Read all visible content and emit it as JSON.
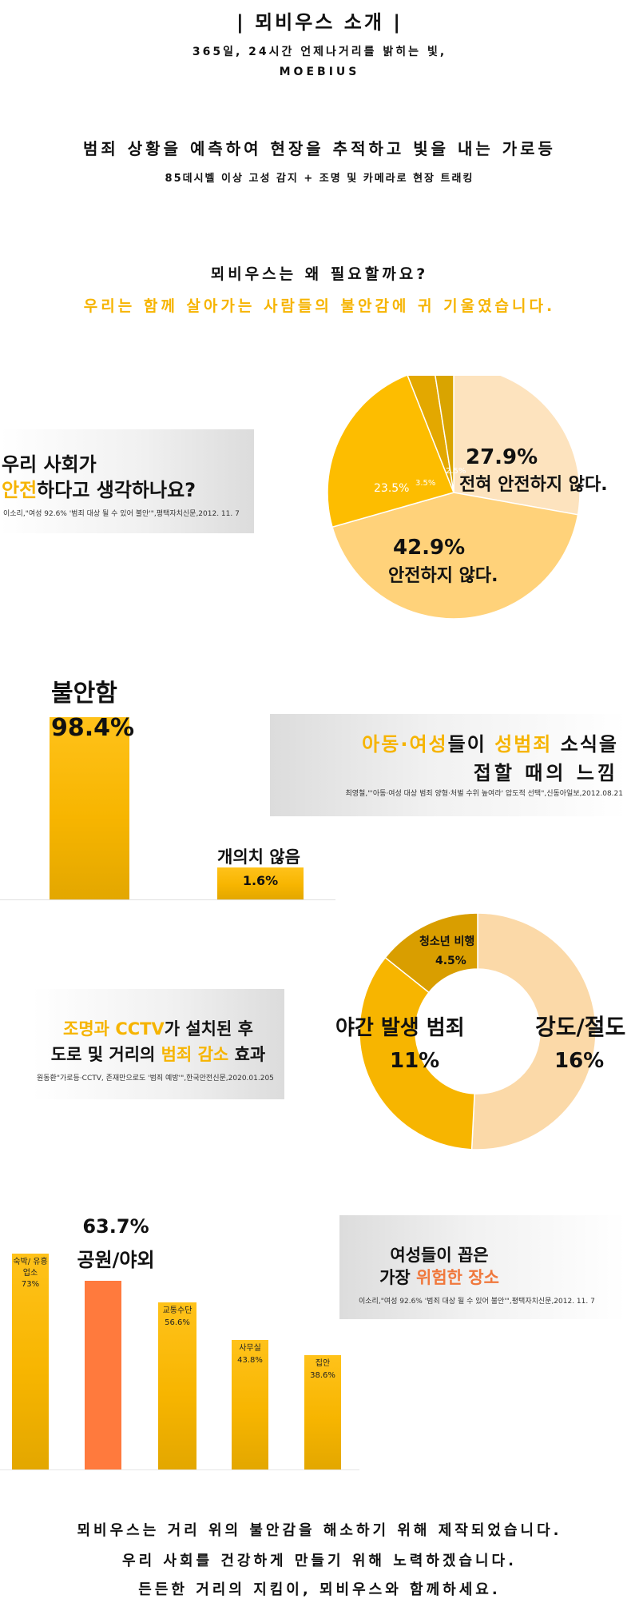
{
  "header": {
    "title": "| 뫼비우스 소개 |",
    "line1": "365일, 24시간 언제나거리를 밝히는 빛,",
    "line2": "MOEBIUS"
  },
  "intro": {
    "headline": "범죄 상황을 예측하여 현장을 추적하고 빛을 내는 가로등",
    "sub": "85데시벨 이상 고성 감지 + 조명 및 카메라로 현장 트래킹"
  },
  "why": {
    "question": "뫼비우스는 왜 필요할까요?",
    "answer": "우리는 함께 살아가는 사람들의 불안감에 귀 기울였습니다."
  },
  "safety": {
    "title_line1": "우리 사회가",
    "title_highlight": "안전",
    "title_rest": "하다고 생각하나요?",
    "source": "이소리,\"여성 92.6% '범죄 대상 될 수 있어 불안'\",평택자치신문,2012. 11. 7"
  },
  "anxiety": {
    "highlight1": "아동·여성",
    "text1": "들이",
    "highlight2": "성범죄",
    "text2": "소식을",
    "line2": "접할 때의 느낌",
    "source": "최영철,\"'아동·여성 대상 범죄 양형·처벌 수위 높여라' 압도적 선택\",신동아일보,2012.08.21"
  },
  "cctv": {
    "hl1": "조명과 CCTV",
    "t1": "가 설치된 후",
    "t2": "도로 및 거리의",
    "hl2": "범죄 감소",
    "t3": "효과",
    "source": "원동환\"가로등·CCTV, 존재만으로도 '범죄 예방'\",한국안전신문,2020.01.205"
  },
  "places": {
    "t1": "여성들이 꼽은",
    "t2": "가장",
    "hl": "위험한 장소",
    "source": "이소리,\"여성 92.6% '범죄 대상 될 수 있어 불안'\",평택자치신문,2012. 11. 7"
  },
  "closing": {
    "line1": "뫼비우스는 거리 위의 불안감을 해소하기 위해 제작되었습니다.",
    "line2": "우리 사회를 건강하게 만들기 위해 노력하겠습니다.",
    "line3": "든든한 거리의 지킴이, 뫼비우스와 함께하세요."
  },
  "colors": {
    "gold": "#f6b400",
    "orange": "#ff7a3d",
    "light_peach": "#fde3be",
    "mid_gold": "#ffd27a",
    "dark_gold": "#d9a400"
  },
  "chart_data": [
    {
      "type": "pie",
      "slices": [
        {
          "label": "전혀 안전하지 않다.",
          "value": 27.9,
          "display": "27.9%"
        },
        {
          "label": "안전하지 않다.",
          "value": 42.9,
          "display": "42.9%"
        },
        {
          "label": "",
          "value": 23.5,
          "display": "23.5%"
        },
        {
          "label": "",
          "value": 3.5,
          "display": "3.5%"
        },
        {
          "label": "",
          "value": 2.5,
          "display": "2.5%"
        }
      ]
    },
    {
      "type": "bar",
      "categories": [
        "불안함",
        "개의치 않음"
      ],
      "values": [
        98.4,
        1.6
      ],
      "displays": [
        "98.4%",
        "1.6%"
      ]
    },
    {
      "type": "pie",
      "slices": [
        {
          "label": "강도/절도",
          "value": 16,
          "display": "16%"
        },
        {
          "label": "야간 발생 범죄",
          "value": 11,
          "display": "11%"
        },
        {
          "label": "청소년 비행",
          "value": 4.5,
          "display": "4.5%"
        }
      ]
    },
    {
      "type": "bar",
      "categories": [
        "숙박/ 유흥업소",
        "공원/야외",
        "교통수단",
        "사무실",
        "집안"
      ],
      "values": [
        73,
        63.7,
        56.6,
        43.8,
        38.6
      ],
      "displays": [
        "73%",
        "63.7%",
        "56.6%",
        "43.8%",
        "38.6%"
      ]
    }
  ]
}
